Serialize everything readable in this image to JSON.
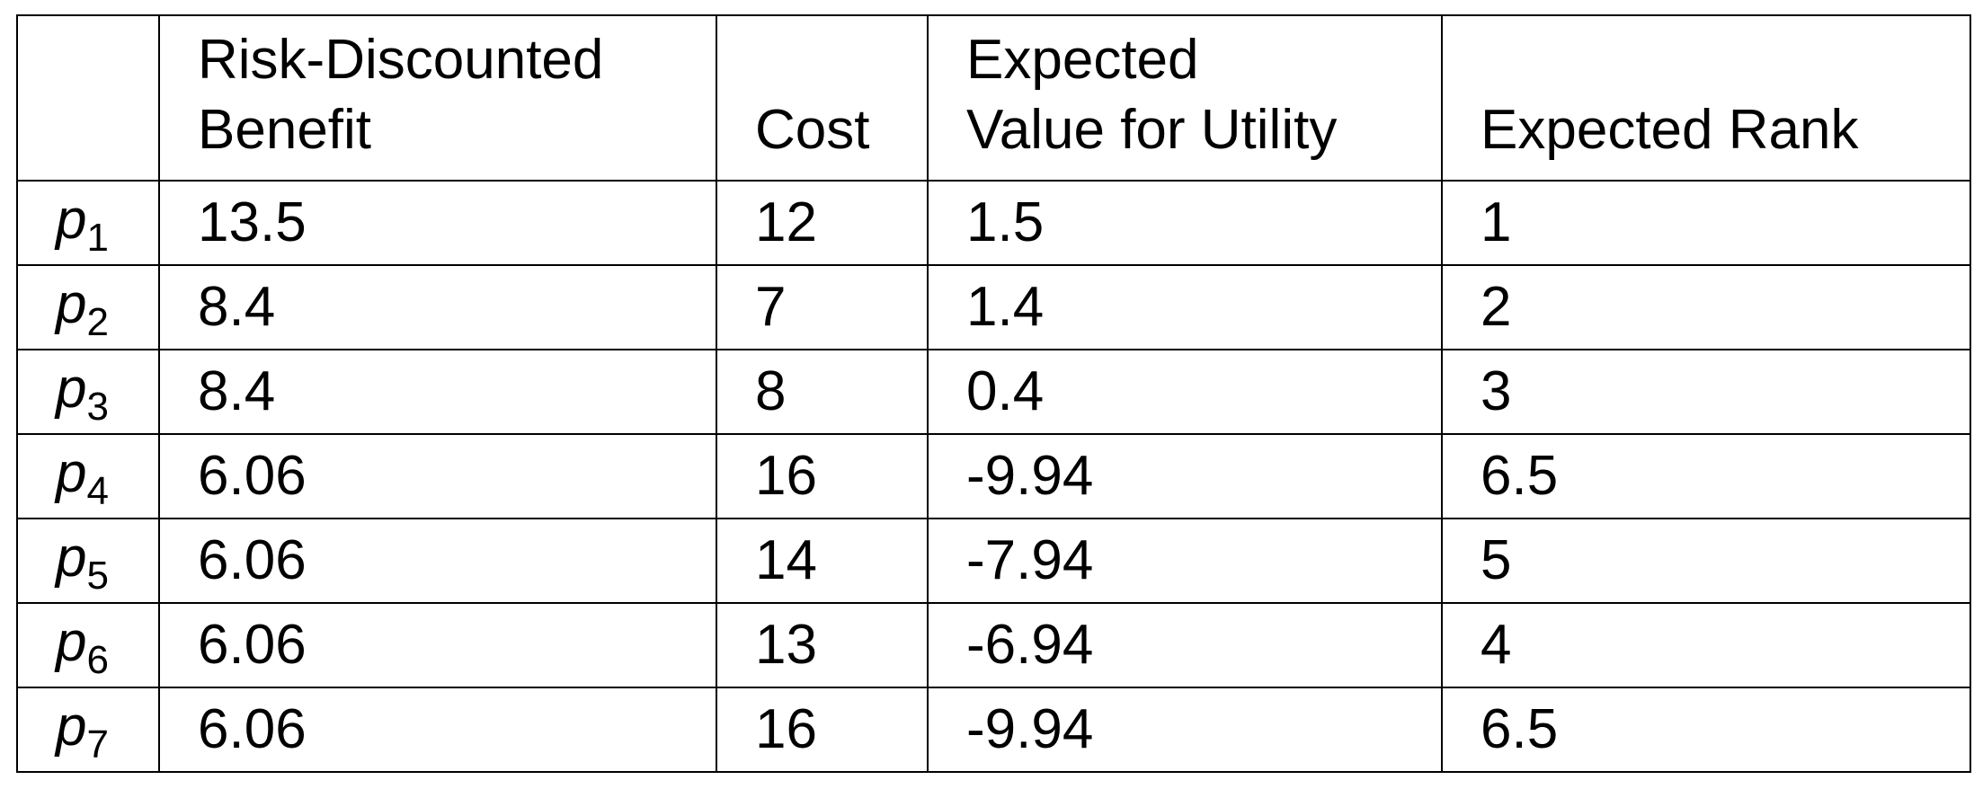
{
  "table": {
    "headers": [
      {
        "lines": [
          ""
        ]
      },
      {
        "lines": [
          "Risk-Discounted",
          "Benefit"
        ]
      },
      {
        "lines": [
          "",
          "Cost"
        ]
      },
      {
        "lines": [
          "Expected",
          "Value for Utility"
        ]
      },
      {
        "lines": [
          "",
          "Expected Rank"
        ]
      }
    ],
    "rows": [
      {
        "label": {
          "symbol": "p",
          "sub": "1"
        },
        "benefit": "13.5",
        "cost": "12",
        "value": "1.5",
        "rank": "1"
      },
      {
        "label": {
          "symbol": "p",
          "sub": "2"
        },
        "benefit": "8.4",
        "cost": "7",
        "value": "1.4",
        "rank": "2"
      },
      {
        "label": {
          "symbol": "p",
          "sub": "3"
        },
        "benefit": "8.4",
        "cost": "8",
        "value": "0.4",
        "rank": "3"
      },
      {
        "label": {
          "symbol": "p",
          "sub": "4"
        },
        "benefit": "6.06",
        "cost": "16",
        "value": "-9.94",
        "rank": "6.5"
      },
      {
        "label": {
          "symbol": "p",
          "sub": "5"
        },
        "benefit": "6.06",
        "cost": "14",
        "value": "-7.94",
        "rank": "5"
      },
      {
        "label": {
          "symbol": "p",
          "sub": "6"
        },
        "benefit": "6.06",
        "cost": "13",
        "value": "-6.94",
        "rank": "4"
      },
      {
        "label": {
          "symbol": "p",
          "sub": "7"
        },
        "benefit": "6.06",
        "cost": "16",
        "value": "-9.94",
        "rank": "6.5"
      }
    ]
  }
}
